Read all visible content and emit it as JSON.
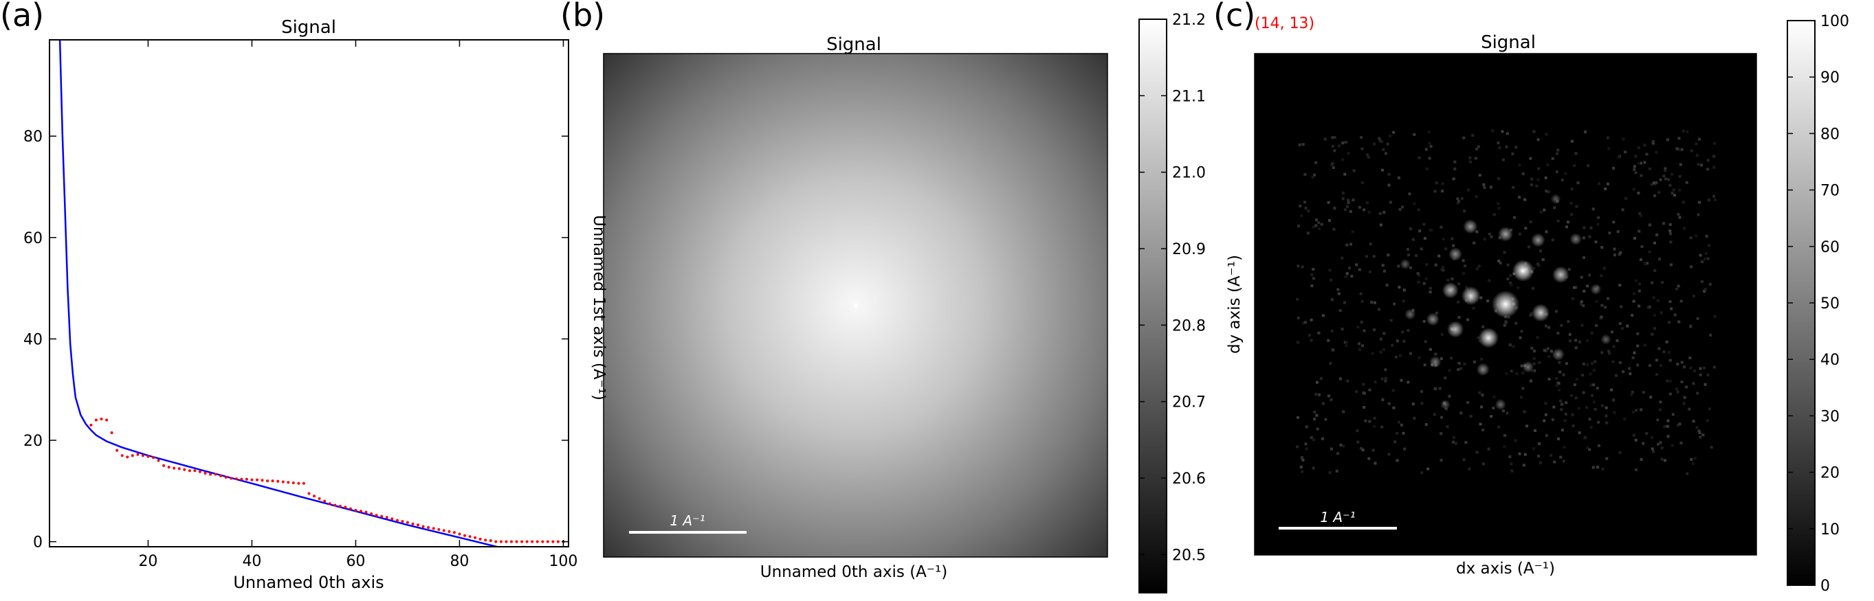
{
  "panels": {
    "a": {
      "label": "(a)"
    },
    "b": {
      "label": "(b)",
      "scalebar": "1 A⁻¹"
    },
    "c": {
      "label": "(c)",
      "coord": "(14, 13)",
      "scalebar": "1 A⁻¹"
    }
  },
  "chart_data": [
    {
      "type": "line",
      "title": "Signal",
      "xlabel": "Unnamed 0th axis",
      "ylabel": "",
      "xlim": [
        1,
        101
      ],
      "ylim": [
        -1,
        99
      ],
      "xticks": [
        20,
        40,
        60,
        80,
        100
      ],
      "yticks": [
        0,
        20,
        40,
        60,
        80
      ],
      "grid": false,
      "series": [
        {
          "style": "solid line",
          "color": "#0000ff",
          "x": [
            3,
            3.5,
            4,
            4.5,
            5,
            5.5,
            6,
            7,
            8,
            9,
            10,
            12,
            15,
            20,
            30,
            40,
            50,
            60,
            70,
            80,
            88,
            92.6
          ],
          "y": [
            99,
            80,
            65,
            50,
            39,
            33,
            28.5,
            25,
            23.2,
            22,
            21,
            19.8,
            18.6,
            17,
            14.2,
            11.5,
            8.7,
            6,
            3.3,
            0.8,
            -1.2,
            -1
          ]
        },
        {
          "style": "dotted",
          "color": "#ff0000",
          "x": [
            9,
            10,
            11,
            12,
            13,
            14,
            15,
            16,
            17,
            18,
            19,
            20,
            21,
            22,
            23,
            24,
            25,
            26,
            27,
            28,
            29,
            30,
            31,
            32,
            33,
            34,
            35,
            36,
            37,
            38,
            39,
            40,
            41,
            42,
            43,
            44,
            45,
            46,
            47,
            48,
            49,
            50,
            51,
            52,
            53,
            54,
            55,
            56,
            57,
            58,
            59,
            60,
            61,
            62,
            63,
            64,
            65,
            66,
            67,
            68,
            69,
            70,
            71,
            72,
            73,
            74,
            75,
            76,
            77,
            78,
            79,
            80,
            81,
            82,
            83,
            84,
            85,
            86,
            87,
            88,
            89,
            90,
            91,
            92,
            93,
            94,
            95,
            96,
            97,
            98,
            99,
            100
          ],
          "y": [
            23,
            24,
            24.2,
            24,
            21.5,
            18,
            17,
            16.7,
            17,
            17.2,
            17,
            16.8,
            16.6,
            16,
            15,
            14.7,
            14.5,
            14.4,
            14.2,
            14,
            14,
            13.8,
            13.5,
            13.3,
            13.3,
            13,
            12.7,
            12.5,
            12.4,
            12.3,
            12.3,
            12.2,
            12.2,
            12.1,
            12,
            12,
            11.9,
            11.8,
            11.7,
            11.6,
            11.5,
            11.5,
            9.5,
            9,
            8.5,
            8,
            7.5,
            7.2,
            7,
            6.8,
            6.5,
            6.2,
            6,
            5.8,
            5.5,
            5.2,
            5,
            4.8,
            4.5,
            4.2,
            4,
            3.8,
            3.5,
            3.3,
            3,
            2.8,
            2.6,
            2.4,
            2.2,
            2,
            1.8,
            1.5,
            1.2,
            1,
            0.8,
            0.5,
            0.3,
            0.2,
            0,
            0,
            0,
            0,
            0,
            0,
            0,
            0,
            0,
            0,
            0,
            0,
            0,
            0
          ]
        }
      ]
    },
    {
      "type": "heatmap",
      "title": "Signal",
      "xlabel": "Unnamed 0th axis (A⁻¹)",
      "ylabel": "Unnamed 1st axis (A⁻¹)",
      "colormap": "gray",
      "pattern": "radial gradient, brightest at center",
      "colorbar": {
        "min": 20.45,
        "max": 21.2,
        "ticks": [
          "20.5",
          "20.6",
          "20.7",
          "20.8",
          "20.9",
          "21.0",
          "21.1",
          "21.2"
        ]
      }
    },
    {
      "type": "heatmap",
      "title": "Signal",
      "xlabel": "dx axis (A⁻¹)",
      "ylabel": "dy axis (A⁻¹)",
      "colormap": "gray",
      "pattern": "diffraction spots on dark background, strongest spot near center",
      "colorbar": {
        "min": 0,
        "max": 100,
        "ticks": [
          "0",
          "10",
          "20",
          "30",
          "40",
          "50",
          "60",
          "70",
          "80",
          "90",
          "100"
        ]
      },
      "spots": [
        {
          "x": 0.5,
          "y": 0.5,
          "intensity": 100
        },
        {
          "x": 0.535,
          "y": 0.433,
          "intensity": 70
        },
        {
          "x": 0.466,
          "y": 0.567,
          "intensity": 62
        },
        {
          "x": 0.431,
          "y": 0.483,
          "intensity": 55
        },
        {
          "x": 0.57,
          "y": 0.517,
          "intensity": 50
        },
        {
          "x": 0.39,
          "y": 0.472,
          "intensity": 42
        },
        {
          "x": 0.61,
          "y": 0.441,
          "intensity": 45
        },
        {
          "x": 0.4,
          "y": 0.55,
          "intensity": 44
        },
        {
          "x": 0.5,
          "y": 0.36,
          "intensity": 35
        },
        {
          "x": 0.43,
          "y": 0.345,
          "intensity": 32
        },
        {
          "x": 0.565,
          "y": 0.372,
          "intensity": 30
        },
        {
          "x": 0.4,
          "y": 0.4,
          "intensity": 28
        },
        {
          "x": 0.355,
          "y": 0.53,
          "intensity": 26
        },
        {
          "x": 0.455,
          "y": 0.63,
          "intensity": 25
        },
        {
          "x": 0.605,
          "y": 0.6,
          "intensity": 22
        },
        {
          "x": 0.64,
          "y": 0.37,
          "intensity": 20
        },
        {
          "x": 0.36,
          "y": 0.615,
          "intensity": 20
        },
        {
          "x": 0.545,
          "y": 0.625,
          "intensity": 18
        },
        {
          "x": 0.49,
          "y": 0.7,
          "intensity": 15
        },
        {
          "x": 0.31,
          "y": 0.52,
          "intensity": 15
        },
        {
          "x": 0.68,
          "y": 0.47,
          "intensity": 15
        },
        {
          "x": 0.3,
          "y": 0.42,
          "intensity": 12
        },
        {
          "x": 0.7,
          "y": 0.57,
          "intensity": 12
        },
        {
          "x": 0.6,
          "y": 0.29,
          "intensity": 10
        },
        {
          "x": 0.38,
          "y": 0.7,
          "intensity": 10
        }
      ]
    }
  ]
}
